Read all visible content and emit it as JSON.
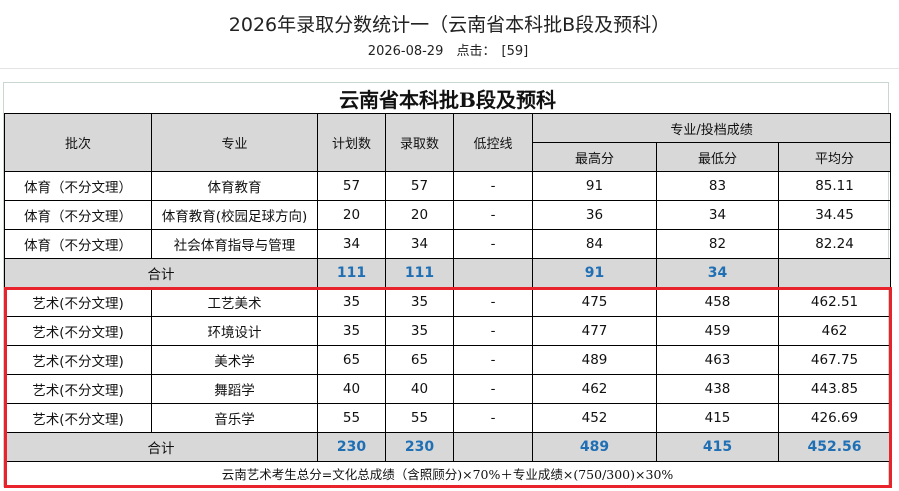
{
  "page": {
    "title": "2026年录取分数统计一（云南省本科批B段及预科）",
    "date": "2026-08-29",
    "clicks_label": "点击：",
    "clicks_value": "[59]"
  },
  "table": {
    "caption": "云南省本科批B段及预科",
    "headers": {
      "batch": "批次",
      "major": "专业",
      "plan": "计划数",
      "admitted": "录取数",
      "control_line": "低控线",
      "score_group": "专业/投档成绩",
      "max": "最高分",
      "min": "最低分",
      "avg": "平均分"
    },
    "sports_rows": [
      [
        "体育（不分文理）",
        "体育教育",
        "57",
        "57",
        "-",
        "91",
        "83",
        "85.11"
      ],
      [
        "体育（不分文理）",
        "体育教育(校园足球方向)",
        "20",
        "20",
        "-",
        "36",
        "34",
        "34.45"
      ],
      [
        "体育（不分文理）",
        "社会体育指导与管理",
        "34",
        "34",
        "-",
        "84",
        "82",
        "82.24"
      ]
    ],
    "sports_total": {
      "label": "合计",
      "plan": "111",
      "admitted": "111",
      "max": "91",
      "min": "34",
      "avg": ""
    },
    "art_rows": [
      [
        "艺术(不分文理)",
        "工艺美术",
        "35",
        "35",
        "-",
        "475",
        "458",
        "462.51"
      ],
      [
        "艺术(不分文理)",
        "环境设计",
        "35",
        "35",
        "-",
        "477",
        "459",
        "462"
      ],
      [
        "艺术(不分文理)",
        "美术学",
        "65",
        "65",
        "-",
        "489",
        "463",
        "467.75"
      ],
      [
        "艺术(不分文理)",
        "舞蹈学",
        "40",
        "40",
        "-",
        "462",
        "438",
        "443.85"
      ],
      [
        "艺术(不分文理)",
        "音乐学",
        "55",
        "55",
        "-",
        "452",
        "415",
        "426.69"
      ]
    ],
    "art_total": {
      "label": "合计",
      "plan": "230",
      "admitted": "230",
      "max": "489",
      "min": "415",
      "avg": "452.56"
    },
    "footnote": "云南艺术考生总分=文化总成绩（含照顾分)×70%＋专业成绩×(750/300)×30%"
  },
  "colors": {
    "header_bg": "#d8d8d8",
    "total_value": "#1f6fb5",
    "highlight_border": "#e8232b"
  }
}
